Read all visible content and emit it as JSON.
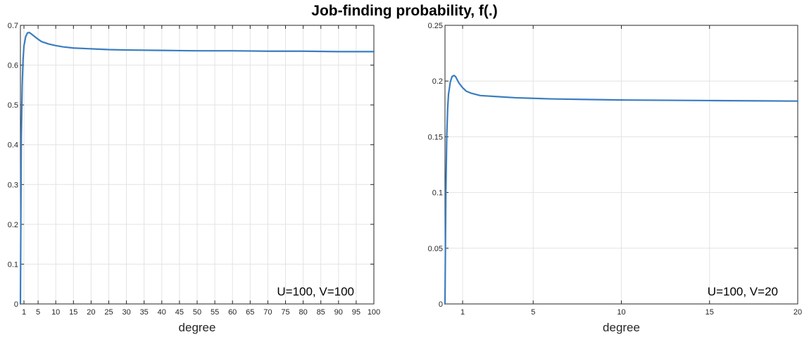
{
  "figure_title": "Job-finding probability, f(.)",
  "chart_data": [
    {
      "type": "line",
      "xlabel": "degree",
      "ylabel": "",
      "xlim": [
        0,
        100
      ],
      "ylim": [
        0,
        0.7
      ],
      "xticks": [
        1,
        5,
        10,
        15,
        20,
        25,
        30,
        35,
        40,
        45,
        50,
        55,
        60,
        65,
        70,
        75,
        80,
        85,
        90,
        95,
        100
      ],
      "xtick_labels": [
        "1",
        "5",
        "10",
        "15",
        "20",
        "25",
        "30",
        "35",
        "40",
        "45",
        "50",
        "55",
        "60",
        "65",
        "70",
        "75",
        "80",
        "85",
        "90",
        "95",
        "100"
      ],
      "yticks": [
        0,
        0.1,
        0.2,
        0.3,
        0.4,
        0.5,
        0.6,
        0.7
      ],
      "ytick_labels": [
        "0",
        "0.1",
        "0.2",
        "0.3",
        "0.4",
        "0.5",
        "0.6",
        "0.7"
      ],
      "grid": true,
      "annotation": "U=100, V=100",
      "color": "#3a7dc0",
      "series": [
        {
          "x": [
            0,
            0.25,
            0.5,
            0.75,
            1,
            1.5,
            2,
            2.5,
            3,
            4,
            5,
            6,
            8,
            10,
            12,
            15,
            20,
            25,
            30,
            40,
            50,
            60,
            70,
            80,
            90,
            100
          ],
          "y": [
            0,
            0.42,
            0.55,
            0.615,
            0.648,
            0.672,
            0.681,
            0.682,
            0.679,
            0.672,
            0.665,
            0.659,
            0.653,
            0.649,
            0.646,
            0.643,
            0.641,
            0.639,
            0.638,
            0.637,
            0.636,
            0.636,
            0.635,
            0.635,
            0.634,
            0.634
          ]
        }
      ]
    },
    {
      "type": "line",
      "xlabel": "degree",
      "ylabel": "",
      "xlim": [
        0,
        20
      ],
      "ylim": [
        0,
        0.25
      ],
      "xticks": [
        1,
        5,
        10,
        15,
        20
      ],
      "xtick_labels": [
        "1",
        "5",
        "10",
        "15",
        "20"
      ],
      "yticks": [
        0,
        0.05,
        0.1,
        0.15,
        0.2,
        0.25
      ],
      "ytick_labels": [
        "0",
        "0.05",
        "0.1",
        "0.15",
        "0.2",
        "0.25"
      ],
      "grid": true,
      "annotation": "U=100, V=20",
      "color": "#3a7dc0",
      "series": [
        {
          "x": [
            0,
            0.05,
            0.1,
            0.15,
            0.2,
            0.3,
            0.4,
            0.5,
            0.6,
            0.7,
            0.8,
            1.0,
            1.2,
            1.5,
            2,
            3,
            4,
            5,
            6,
            8,
            10,
            12,
            15,
            18,
            20
          ],
          "y": [
            0,
            0.1,
            0.15,
            0.175,
            0.188,
            0.199,
            0.204,
            0.205,
            0.204,
            0.201,
            0.198,
            0.194,
            0.191,
            0.189,
            0.187,
            0.186,
            0.185,
            0.1845,
            0.184,
            0.1835,
            0.183,
            0.1828,
            0.1825,
            0.1822,
            0.182
          ]
        }
      ]
    }
  ]
}
